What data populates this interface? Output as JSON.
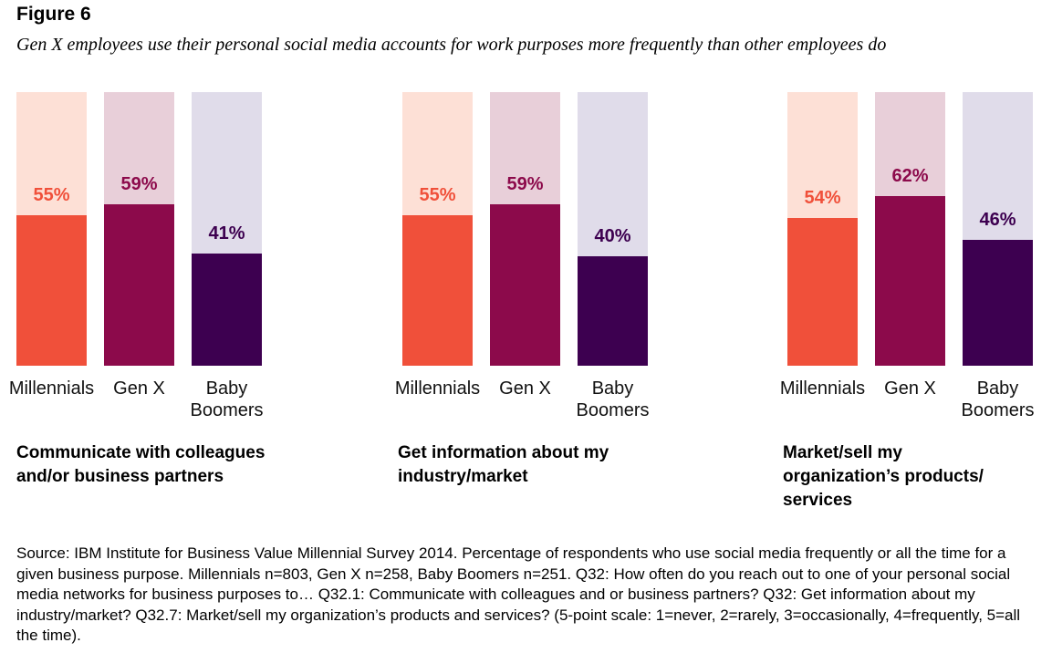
{
  "figure_label": "Figure 6",
  "subtitle": "Gen X employees use their personal social media accounts for work purposes more frequently than other employees do",
  "chart_data": [
    {
      "type": "bar",
      "title": "Communicate with colleagues and/or business partners",
      "categories": [
        "Millennials",
        "Gen X",
        "Baby Boomers"
      ],
      "values": [
        55,
        59,
        41
      ],
      "labels": [
        "55%",
        "59%",
        "41%"
      ],
      "ylim": [
        0,
        100
      ]
    },
    {
      "type": "bar",
      "title": "Get information about my industry/market",
      "categories": [
        "Millennials",
        "Gen X",
        "Baby Boomers"
      ],
      "values": [
        55,
        59,
        40
      ],
      "labels": [
        "55%",
        "59%",
        "40%"
      ],
      "ylim": [
        0,
        100
      ]
    },
    {
      "type": "bar",
      "title": "Market/sell my organization’s products/ services",
      "categories": [
        "Millennials",
        "Gen X",
        "Baby Boomers"
      ],
      "values": [
        54,
        62,
        46
      ],
      "labels": [
        "54%",
        "62%",
        "46%"
      ],
      "ylim": [
        0,
        100
      ]
    }
  ],
  "colors": {
    "bar_fill": [
      "#f0503a",
      "#8c0a4b",
      "#3d0050"
    ],
    "bar_bg": [
      "#fde0d6",
      "#e8cfd9",
      "#e0dcea"
    ],
    "label_text": [
      "#f0503a",
      "#8c0a4b",
      "#3d0050"
    ]
  },
  "source": "Source: IBM Institute for Business Value Millennial Survey 2014. Percentage of respondents who use social media frequently or all the time for a given business purpose. Millennials n=803, Gen X n=258, Baby Boomers n=251. Q32: How often do you reach out to one of your personal social media networks for business purposes to… Q32.1: Communicate with colleagues and or business partners? Q32: Get information about my industry/market? Q32.7: Market/sell my organization’s products and services? (5-point scale: 1=never, 2=rarely, 3=occasionally, 4=frequently, 5=all the time)."
}
